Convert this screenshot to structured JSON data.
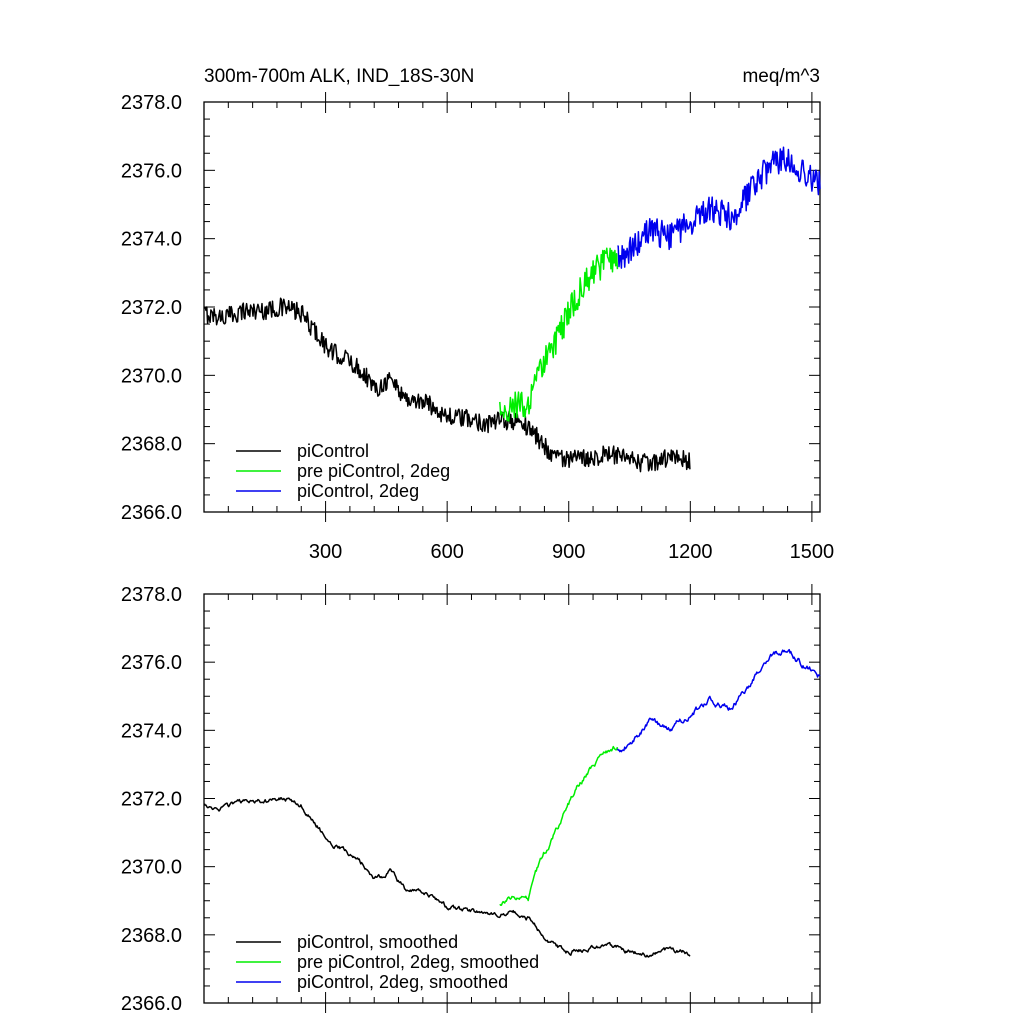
{
  "header": {
    "title": "300m-700m ALK, IND_18S-30N",
    "units": "meq/m^3"
  },
  "chart_data": [
    {
      "type": "line",
      "panel": "top",
      "xlim": [
        0,
        1520
      ],
      "ylim": [
        2366.0,
        2378.0
      ],
      "x_ticks": [
        300,
        600,
        900,
        1200,
        1500
      ],
      "x_tick_labels": [
        "300",
        "600",
        "900",
        "1200",
        "1500"
      ],
      "y_ticks": [
        2366,
        2368,
        2370,
        2372,
        2374,
        2376,
        2378
      ],
      "y_tick_labels": [
        "2366.0",
        "2368.0",
        "2370.0",
        "2372.0",
        "2374.0",
        "2376.0",
        "2378.0"
      ],
      "legend_position": "bottom-left",
      "series": [
        {
          "name": "piControl",
          "color": "#000000",
          "x_range": [
            1,
            1200
          ],
          "noise": 0.28,
          "anchors": [
            [
              1,
              2371.8
            ],
            [
              50,
              2371.7
            ],
            [
              100,
              2371.9
            ],
            [
              150,
              2371.9
            ],
            [
              200,
              2372.0
            ],
            [
              240,
              2371.8
            ],
            [
              280,
              2371.2
            ],
            [
              310,
              2370.7
            ],
            [
              350,
              2370.5
            ],
            [
              400,
              2370.0
            ],
            [
              420,
              2369.6
            ],
            [
              460,
              2369.9
            ],
            [
              500,
              2369.3
            ],
            [
              550,
              2369.2
            ],
            [
              600,
              2368.8
            ],
            [
              660,
              2368.7
            ],
            [
              700,
              2368.6
            ],
            [
              760,
              2368.7
            ],
            [
              800,
              2368.5
            ],
            [
              850,
              2367.8
            ],
            [
              900,
              2367.5
            ],
            [
              950,
              2367.6
            ],
            [
              1000,
              2367.7
            ],
            [
              1050,
              2367.5
            ],
            [
              1100,
              2367.4
            ],
            [
              1150,
              2367.6
            ],
            [
              1200,
              2367.5
            ]
          ]
        },
        {
          "name": "pre piControl, 2deg",
          "color": "#00ee00",
          "x_range": [
            730,
            1020
          ],
          "noise": 0.42,
          "anchors": [
            [
              730,
              2368.9
            ],
            [
              780,
              2369.2
            ],
            [
              800,
              2369.0
            ],
            [
              830,
              2370.2
            ],
            [
              880,
              2371.3
            ],
            [
              920,
              2372.3
            ],
            [
              960,
              2373.0
            ],
            [
              1000,
              2373.4
            ],
            [
              1020,
              2373.5
            ]
          ]
        },
        {
          "name": "piControl, 2deg",
          "color": "#0000ee",
          "x_range": [
            1020,
            1520
          ],
          "noise": 0.42,
          "anchors": [
            [
              1020,
              2373.4
            ],
            [
              1060,
              2373.7
            ],
            [
              1100,
              2374.3
            ],
            [
              1150,
              2374.0
            ],
            [
              1200,
              2374.5
            ],
            [
              1250,
              2374.9
            ],
            [
              1300,
              2374.6
            ],
            [
              1350,
              2375.4
            ],
            [
              1400,
              2376.2
            ],
            [
              1440,
              2376.3
            ],
            [
              1480,
              2375.9
            ],
            [
              1520,
              2375.6
            ]
          ]
        }
      ]
    },
    {
      "type": "line",
      "panel": "bottom",
      "xlim": [
        0,
        1520
      ],
      "ylim": [
        2366.0,
        2378.0
      ],
      "x_ticks": [
        300,
        600,
        900,
        1200,
        1500
      ],
      "x_tick_labels": [],
      "y_ticks": [
        2366,
        2368,
        2370,
        2372,
        2374,
        2376,
        2378
      ],
      "y_tick_labels": [
        "2366.0",
        "2368.0",
        "2370.0",
        "2372.0",
        "2374.0",
        "2376.0",
        "2378.0"
      ],
      "legend_position": "bottom-left",
      "series": [
        {
          "name": "piControl, smoothed",
          "color": "#000000",
          "x_range": [
            1,
            1200
          ],
          "noise": 0.1,
          "anchors": [
            [
              1,
              2371.8
            ],
            [
              50,
              2371.7
            ],
            [
              100,
              2371.9
            ],
            [
              150,
              2371.9
            ],
            [
              200,
              2372.0
            ],
            [
              240,
              2371.8
            ],
            [
              280,
              2371.2
            ],
            [
              310,
              2370.7
            ],
            [
              350,
              2370.5
            ],
            [
              400,
              2370.0
            ],
            [
              420,
              2369.6
            ],
            [
              460,
              2369.9
            ],
            [
              500,
              2369.3
            ],
            [
              550,
              2369.2
            ],
            [
              600,
              2368.8
            ],
            [
              660,
              2368.7
            ],
            [
              700,
              2368.6
            ],
            [
              760,
              2368.7
            ],
            [
              800,
              2368.5
            ],
            [
              850,
              2367.8
            ],
            [
              900,
              2367.5
            ],
            [
              950,
              2367.6
            ],
            [
              1000,
              2367.7
            ],
            [
              1050,
              2367.5
            ],
            [
              1100,
              2367.4
            ],
            [
              1150,
              2367.6
            ],
            [
              1200,
              2367.5
            ]
          ]
        },
        {
          "name": "pre piControl, 2deg, smoothed",
          "color": "#00ee00",
          "x_range": [
            730,
            1020
          ],
          "noise": 0.12,
          "anchors": [
            [
              730,
              2368.9
            ],
            [
              780,
              2369.2
            ],
            [
              800,
              2369.0
            ],
            [
              830,
              2370.2
            ],
            [
              880,
              2371.3
            ],
            [
              920,
              2372.3
            ],
            [
              960,
              2373.0
            ],
            [
              1000,
              2373.4
            ],
            [
              1020,
              2373.5
            ]
          ]
        },
        {
          "name": "piControl, 2deg, smoothed",
          "color": "#0000ee",
          "x_range": [
            1020,
            1520
          ],
          "noise": 0.13,
          "anchors": [
            [
              1020,
              2373.4
            ],
            [
              1060,
              2373.7
            ],
            [
              1100,
              2374.3
            ],
            [
              1150,
              2374.0
            ],
            [
              1200,
              2374.5
            ],
            [
              1250,
              2374.9
            ],
            [
              1300,
              2374.6
            ],
            [
              1350,
              2375.4
            ],
            [
              1400,
              2376.2
            ],
            [
              1440,
              2376.3
            ],
            [
              1480,
              2375.9
            ],
            [
              1520,
              2375.6
            ]
          ]
        }
      ]
    }
  ]
}
